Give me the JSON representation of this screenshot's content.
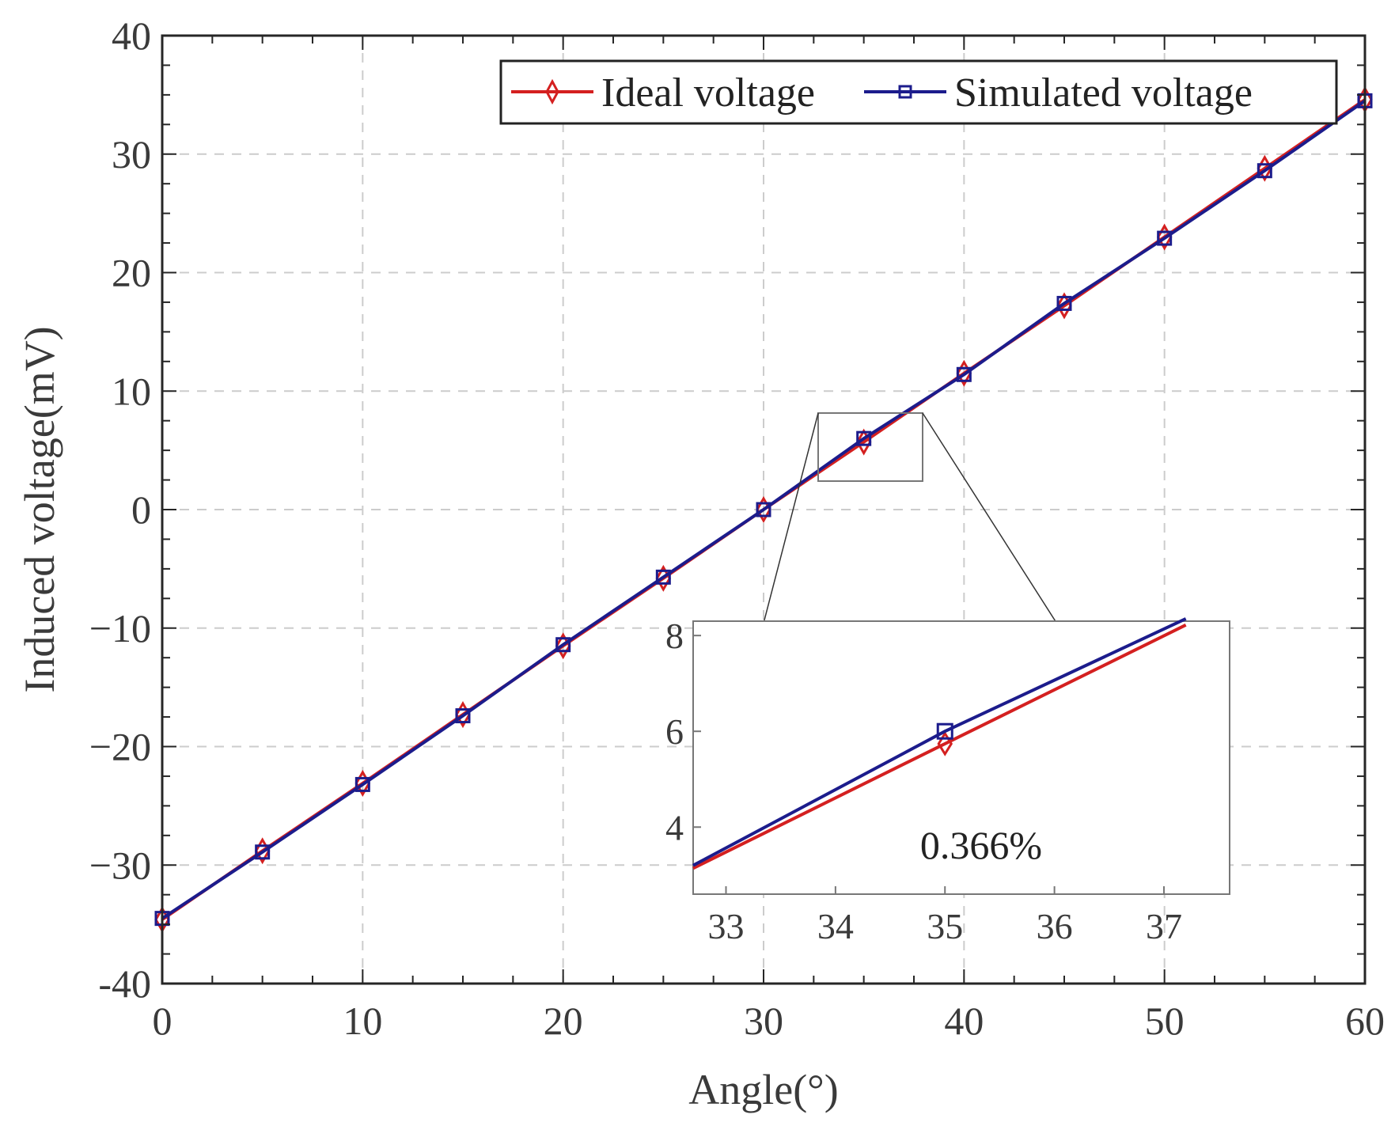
{
  "chart_data": [
    {
      "type": "line",
      "xlabel": "Angle(°)",
      "ylabel": "Induced voltage(mV)",
      "xlim": [
        0,
        60
      ],
      "ylim": [
        -40,
        40
      ],
      "xticks": [
        0,
        10,
        20,
        30,
        40,
        50,
        60
      ],
      "yticks": [
        -40,
        -30,
        -20,
        -10,
        0,
        10,
        20,
        30,
        40
      ],
      "xtick_labels": [
        "0",
        "10",
        "20",
        "30",
        "40",
        "50",
        "60"
      ],
      "ytick_labels": [
        "-40",
        "−30",
        "−20",
        "−10",
        "0",
        "10",
        "20",
        "30",
        "40"
      ],
      "grid": true,
      "legend_position": "top-right",
      "x": [
        0,
        5,
        10,
        15,
        20,
        25,
        30,
        35,
        40,
        45,
        50,
        55,
        60
      ],
      "series": [
        {
          "name": "Ideal voltage",
          "color": "#d42020",
          "marker": "diamond",
          "values": [
            -34.6,
            -28.8,
            -23.1,
            -17.3,
            -11.5,
            -5.8,
            0,
            5.7,
            11.5,
            17.2,
            23.0,
            28.8,
            34.6
          ]
        },
        {
          "name": "Simulated voltage",
          "color": "#1c1c8c",
          "marker": "square",
          "values": [
            -34.5,
            -28.9,
            -23.2,
            -17.4,
            -11.4,
            -5.7,
            0,
            6.0,
            11.4,
            17.4,
            22.9,
            28.6,
            34.5
          ]
        }
      ]
    },
    {
      "type": "line",
      "role": "zoom-inset",
      "xlim": [
        32.7,
        37.6
      ],
      "ylim": [
        2.6,
        8.3
      ],
      "xticks": [
        33,
        34,
        35,
        36,
        37
      ],
      "yticks": [
        4,
        6,
        8
      ],
      "xtick_labels": [
        "33",
        "34",
        "35",
        "36",
        "37"
      ],
      "ytick_labels": [
        "4",
        "6",
        "8"
      ],
      "annotation": "0.366%",
      "series": [
        {
          "name": "Ideal voltage",
          "color": "#d42020",
          "x": [
            32.7,
            35,
            37.2
          ],
          "values": [
            3.14,
            5.74,
            8.22
          ],
          "marker_points": [
            35
          ]
        },
        {
          "name": "Simulated voltage",
          "color": "#1c1c8c",
          "x": [
            32.7,
            35,
            37.2
          ],
          "values": [
            3.2,
            6.0,
            8.35
          ],
          "marker_points": [
            35
          ]
        }
      ]
    }
  ]
}
